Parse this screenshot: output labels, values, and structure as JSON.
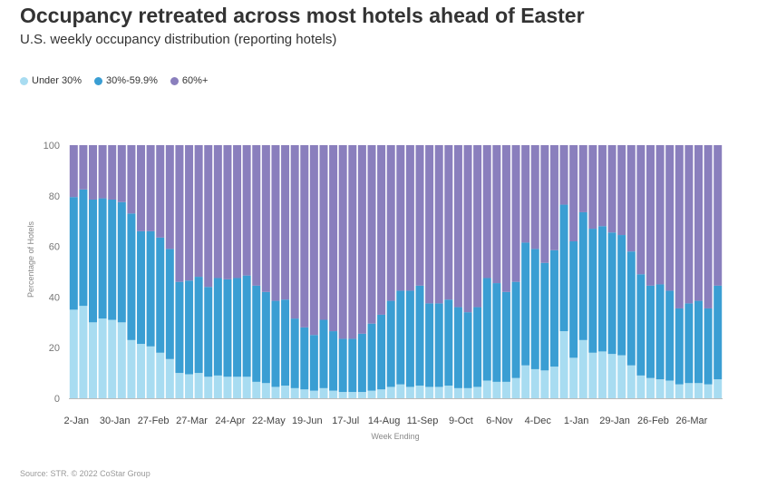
{
  "header": {
    "title": "Occupancy retreated across most hotels ahead of Easter",
    "subtitle": "U.S. weekly occupancy distribution (reporting hotels)"
  },
  "footer": {
    "source": "Source: STR. © 2022 CoStar Group"
  },
  "colors": {
    "under30": "#a8dcf1",
    "mid": "#3a9ed3",
    "over60": "#8a7fbd"
  },
  "chart_data": {
    "type": "bar",
    "stacked": true,
    "title": "Occupancy retreated across most hotels ahead of Easter",
    "subtitle": "U.S. weekly occupancy distribution (reporting hotels)",
    "xlabel": "Week Ending",
    "ylabel": "Percentage of Hotels",
    "ylim": [
      0,
      100
    ],
    "yticks": [
      0,
      20,
      40,
      60,
      80,
      100
    ],
    "legend": [
      "Under 30%",
      "30%-59.9%",
      "60%+"
    ],
    "legend_position": "top-left",
    "xtick_labels": [
      {
        "index": 0,
        "label": "2-Jan"
      },
      {
        "index": 4,
        "label": "30-Jan"
      },
      {
        "index": 8,
        "label": "27-Feb"
      },
      {
        "index": 12,
        "label": "27-Mar"
      },
      {
        "index": 16,
        "label": "24-Apr"
      },
      {
        "index": 20,
        "label": "22-May"
      },
      {
        "index": 24,
        "label": "19-Jun"
      },
      {
        "index": 28,
        "label": "17-Jul"
      },
      {
        "index": 32,
        "label": "14-Aug"
      },
      {
        "index": 36,
        "label": "11-Sep"
      },
      {
        "index": 40,
        "label": "9-Oct"
      },
      {
        "index": 44,
        "label": "6-Nov"
      },
      {
        "index": 48,
        "label": "4-Dec"
      },
      {
        "index": 52,
        "label": "1-Jan"
      },
      {
        "index": 56,
        "label": "29-Jan"
      },
      {
        "index": 60,
        "label": "26-Feb"
      },
      {
        "index": 64,
        "label": "26-Mar"
      }
    ],
    "series": [
      {
        "name": "Under 30%",
        "values": [
          35,
          36.5,
          30,
          31.5,
          31,
          30,
          23,
          21.5,
          20.5,
          18,
          15.5,
          10,
          9.5,
          10,
          8.5,
          9,
          8.5,
          8.5,
          8.5,
          6.5,
          6,
          4.5,
          5,
          4,
          3.5,
          3,
          4,
          3,
          2.5,
          2.5,
          2.5,
          3,
          3.5,
          4.5,
          5.5,
          4.5,
          5,
          4.5,
          4.5,
          5,
          4,
          4,
          4.5,
          7,
          6.5,
          6.5,
          8,
          13,
          11.5,
          11,
          12.5,
          26.5,
          16,
          23,
          18,
          18.5,
          17.5,
          17,
          13,
          9,
          8,
          7.5,
          7,
          5.5,
          6,
          6,
          5.5,
          7.5
        ]
      },
      {
        "name": "30%-59.9%",
        "values": [
          44.5,
          46,
          48.5,
          47.5,
          47.5,
          47.5,
          50,
          44.5,
          45.5,
          45.5,
          43.5,
          36,
          37,
          38,
          35.5,
          38.5,
          38.5,
          39,
          40,
          38,
          36,
          34,
          34,
          27.5,
          24.5,
          22,
          27,
          23.5,
          21,
          21,
          23,
          26.5,
          29.5,
          34,
          37,
          38,
          39.5,
          33,
          33,
          34,
          32,
          30,
          31.5,
          40.5,
          39,
          35.5,
          38,
          48.5,
          47.5,
          42.5,
          46,
          50,
          46,
          50.5,
          49,
          49.5,
          48,
          47.5,
          45,
          40,
          36.5,
          37.5,
          35.5,
          30,
          31.5,
          32.5,
          30,
          37
        ]
      },
      {
        "name": "60%+",
        "values": [
          20.5,
          17.5,
          21.5,
          21,
          21.5,
          22.5,
          27,
          34,
          34,
          36.5,
          41,
          54,
          53.5,
          52,
          56,
          52.5,
          53,
          52.5,
          51.5,
          55.5,
          58,
          61.5,
          61,
          68.5,
          72,
          75,
          69,
          73.5,
          76.5,
          76.5,
          74.5,
          70.5,
          67,
          61.5,
          57.5,
          57.5,
          55.5,
          62.5,
          62.5,
          61,
          64,
          66,
          64,
          52.5,
          54.5,
          58,
          54,
          38.5,
          41,
          46.5,
          41.5,
          23.5,
          38,
          26.5,
          33,
          32,
          34.5,
          35.5,
          42,
          51,
          55.5,
          55,
          57.5,
          64.5,
          62.5,
          61.5,
          64.5,
          55.5
        ]
      }
    ]
  }
}
